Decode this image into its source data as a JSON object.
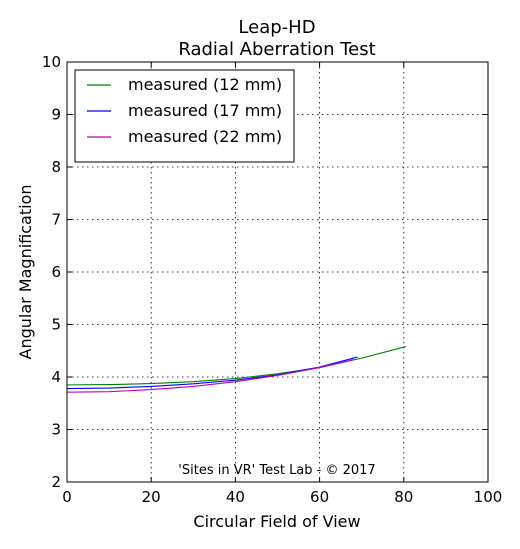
{
  "chart_data": {
    "type": "line",
    "title": "Leap-HD",
    "subtitle": "Radial Aberration Test",
    "xlabel": "Circular Field of View",
    "ylabel": "Angular Magnification",
    "xlim": [
      0,
      100
    ],
    "ylim": [
      2,
      10
    ],
    "xticks": [
      0,
      20,
      40,
      60,
      80,
      100
    ],
    "yticks": [
      2,
      3,
      4,
      5,
      6,
      7,
      8,
      9,
      10
    ],
    "grid": true,
    "legend_position": "top-left",
    "annotation": "'Sites in VR' Test Lab - © 2017",
    "series": [
      {
        "name": "measured (12 mm)",
        "color": "#008000",
        "x": [
          0,
          10,
          20,
          30,
          40,
          50,
          60,
          70,
          80.5
        ],
        "y": [
          3.85,
          3.855,
          3.875,
          3.91,
          3.97,
          4.06,
          4.18,
          4.36,
          4.58
        ]
      },
      {
        "name": "measured (17 mm)",
        "color": "#0000ff",
        "x": [
          0,
          10,
          20,
          30,
          40,
          50,
          60,
          69
        ],
        "y": [
          3.78,
          3.79,
          3.82,
          3.87,
          3.94,
          4.04,
          4.19,
          4.38
        ]
      },
      {
        "name": "measured (22 mm)",
        "color": "#bf00bf",
        "x": [
          0,
          10,
          20,
          30,
          40,
          50,
          60,
          68
        ],
        "y": [
          3.71,
          3.72,
          3.76,
          3.82,
          3.91,
          4.03,
          4.18,
          4.33
        ]
      }
    ]
  }
}
